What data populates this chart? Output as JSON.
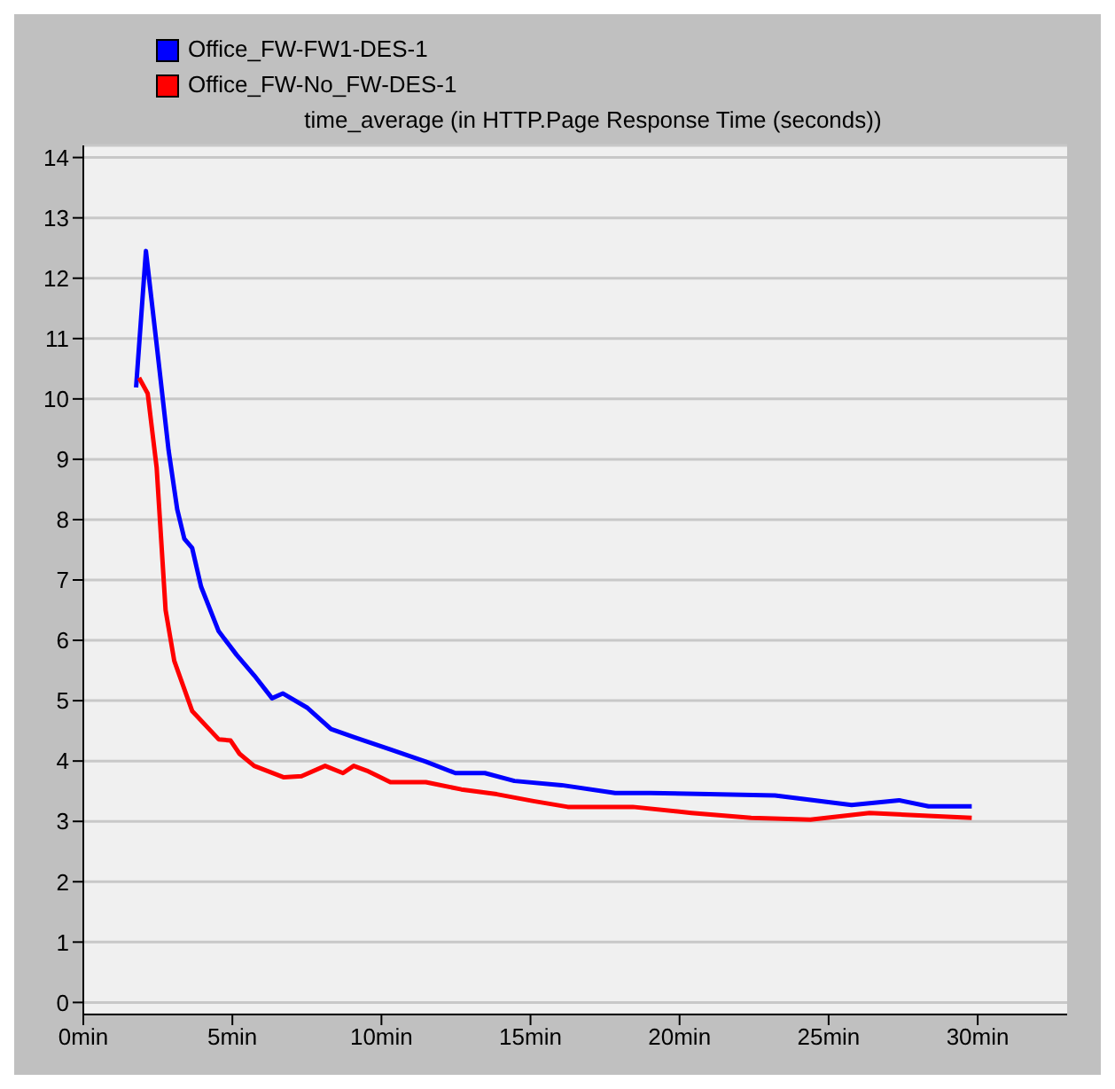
{
  "chart_data": {
    "type": "line",
    "title": "time_average (in HTTP.Page Response Time (seconds))",
    "xlim": [
      0,
      33
    ],
    "xticks": [
      {
        "value": 0,
        "label": "0min"
      },
      {
        "value": 5,
        "label": "5min"
      },
      {
        "value": 10,
        "label": "10min"
      },
      {
        "value": 15,
        "label": "15min"
      },
      {
        "value": 20,
        "label": "20min"
      },
      {
        "value": 25,
        "label": "25min"
      },
      {
        "value": 30,
        "label": "30min"
      }
    ],
    "ylim": [
      -0.2,
      14.2
    ],
    "yticks": [
      0,
      1,
      2,
      3,
      4,
      5,
      6,
      7,
      8,
      9,
      10,
      11,
      12,
      13,
      14
    ],
    "grid": "y",
    "legend": "top left",
    "series": [
      {
        "name": "Office_FW-FW1-DES-1",
        "color": "#0000ff",
        "x": [
          1.77,
          2.1,
          2.46,
          2.86,
          3.15,
          3.39,
          3.65,
          3.95,
          4.54,
          5.14,
          5.73,
          6.33,
          6.69,
          7.52,
          8.31,
          9.11,
          10.3,
          11.49,
          12.48,
          13.47,
          14.46,
          16.05,
          17.84,
          19.03,
          21.0,
          23.2,
          25.77,
          27.36,
          28.35,
          29.8
        ],
        "values": [
          10.19,
          12.45,
          10.9,
          9.15,
          8.17,
          7.68,
          7.53,
          6.89,
          6.15,
          5.76,
          5.42,
          5.04,
          5.12,
          4.88,
          4.53,
          4.39,
          4.19,
          3.99,
          3.8,
          3.8,
          3.67,
          3.6,
          3.47,
          3.47,
          3.45,
          3.43,
          3.27,
          3.35,
          3.25,
          3.25
        ]
      },
      {
        "name": "Office_FW-No_FW-DES-1",
        "color": "#ff0000",
        "x": [
          1.87,
          2.16,
          2.46,
          2.76,
          3.05,
          3.65,
          4.54,
          4.94,
          5.24,
          5.73,
          6.73,
          7.32,
          8.11,
          8.71,
          9.07,
          9.51,
          10.3,
          11.49,
          12.68,
          13.87,
          15.06,
          16.25,
          18.43,
          20.4,
          22.4,
          24.39,
          26.37,
          28.35,
          29.8
        ],
        "values": [
          10.35,
          10.09,
          8.86,
          6.5,
          5.66,
          4.83,
          4.36,
          4.34,
          4.12,
          3.92,
          3.73,
          3.75,
          3.92,
          3.8,
          3.92,
          3.84,
          3.65,
          3.65,
          3.53,
          3.45,
          3.34,
          3.24,
          3.24,
          3.14,
          3.06,
          3.03,
          3.14,
          3.09,
          3.06
        ]
      }
    ]
  }
}
